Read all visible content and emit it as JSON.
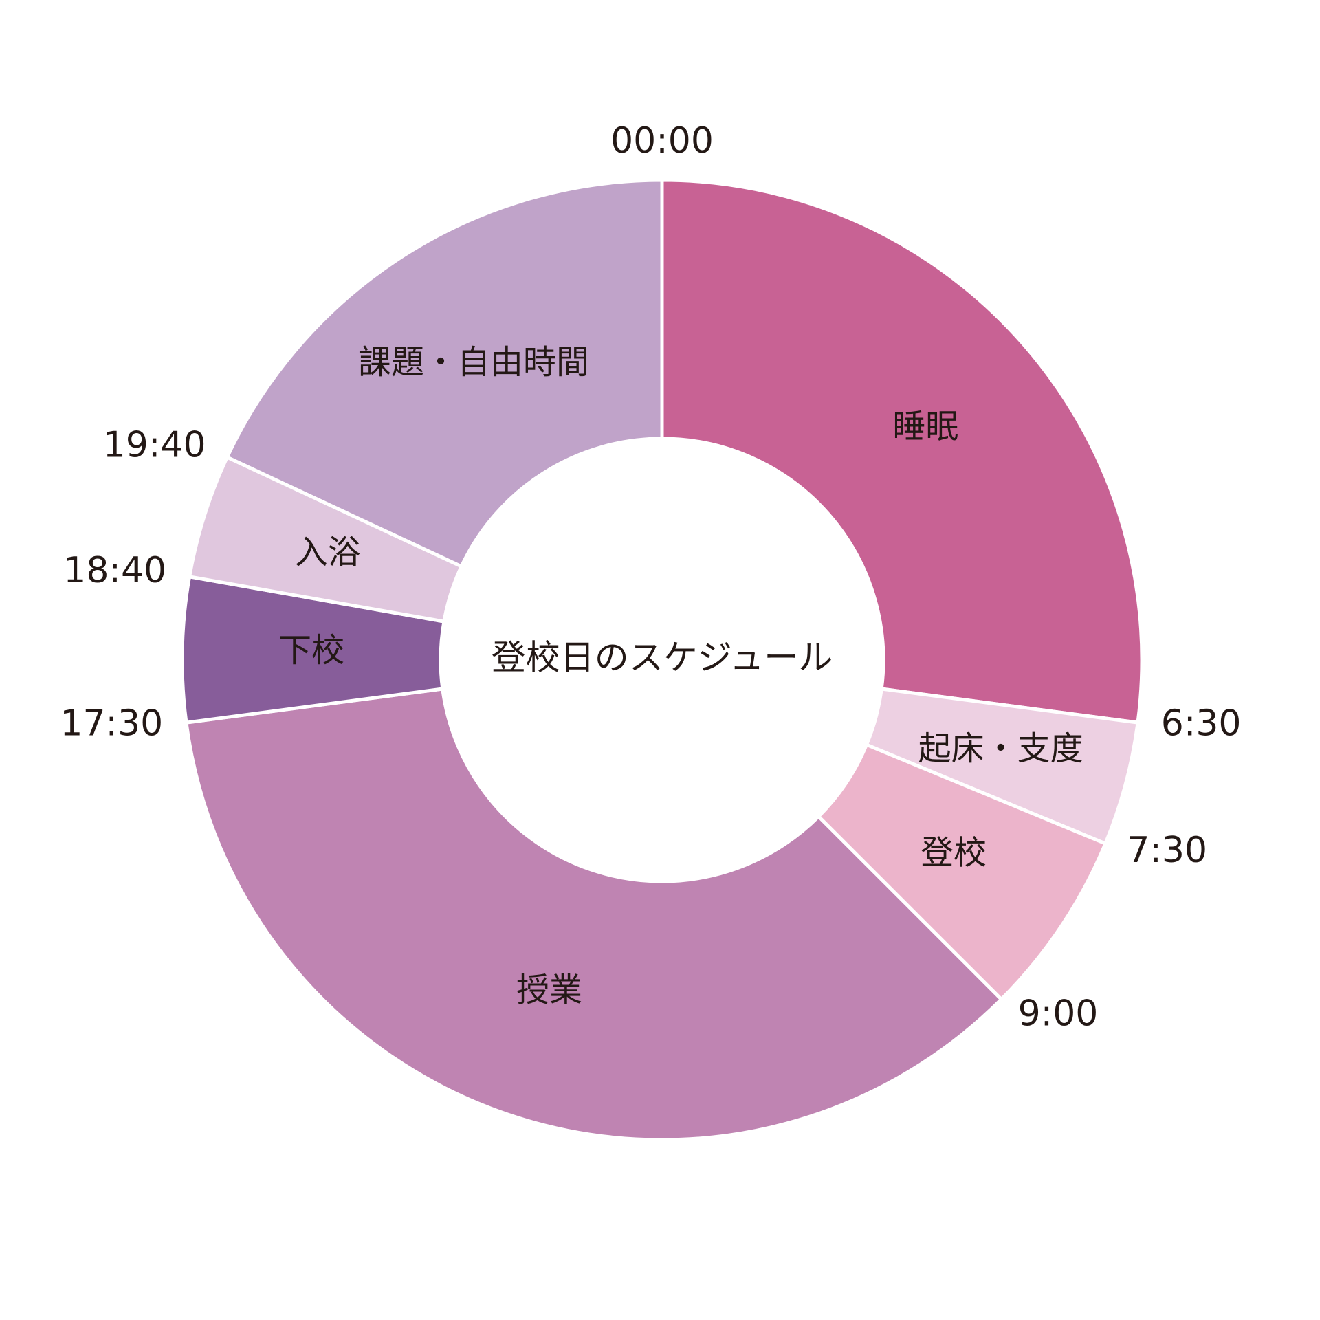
{
  "chart_data": {
    "type": "pie",
    "variant": "donut",
    "title": "登校日のスケジュール",
    "clock_hours": 24,
    "start_time": "00:00",
    "segments": [
      {
        "label": "睡眠",
        "start": "00:00",
        "end": "6:30",
        "hours": 6.5,
        "color": "#c86294"
      },
      {
        "label": "起床・支度",
        "start": "6:30",
        "end": "7:30",
        "hours": 1.0,
        "color": "#edd0e2"
      },
      {
        "label": "登校",
        "start": "7:30",
        "end": "9:00",
        "hours": 1.5,
        "color": "#ecb4cb"
      },
      {
        "label": "授業",
        "start": "9:00",
        "end": "17:30",
        "hours": 8.5,
        "color": "#bf84b2"
      },
      {
        "label": "下校",
        "start": "17:30",
        "end": "18:40",
        "hours": 1.1667,
        "color": "#875d9a"
      },
      {
        "label": "入浴",
        "start": "18:40",
        "end": "19:40",
        "hours": 1.0,
        "color": "#e0c7de"
      },
      {
        "label": "課題・自由時間",
        "start": "19:40",
        "end": "00:00",
        "hours": 4.3333,
        "color": "#c0a3c9"
      }
    ],
    "time_labels": [
      "00:00",
      "6:30",
      "7:30",
      "9:00",
      "17:30",
      "18:40",
      "19:40"
    ],
    "legend": "none"
  }
}
